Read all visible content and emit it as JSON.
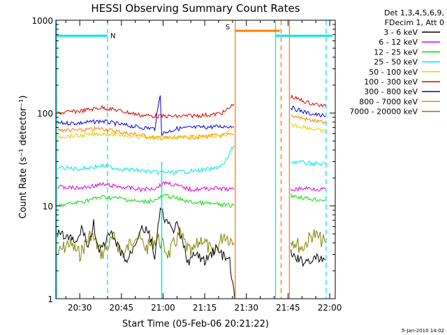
{
  "chart_data": {
    "type": "line",
    "title": "HESSI Observing Summary Count Rates",
    "xlabel": "Start Time (05-Feb-06 20:21:22)",
    "ylabel": "Count Rate (s⁻¹ detector⁻¹)",
    "x_range_minutes": [
      21.4,
      122
    ],
    "y_range": [
      1,
      1000
    ],
    "y_scale": "log",
    "x_ticks": [
      {
        "min": 30,
        "label": "20:30"
      },
      {
        "min": 45,
        "label": "20:45"
      },
      {
        "min": 60,
        "label": "21:00"
      },
      {
        "min": 75,
        "label": "21:15"
      },
      {
        "min": 90,
        "label": "21:30"
      },
      {
        "min": 105,
        "label": "21:45"
      },
      {
        "min": 120,
        "label": "22:00"
      }
    ],
    "y_ticks": [
      {
        "value": 1,
        "label": "1"
      },
      {
        "value": 10,
        "label": "10"
      },
      {
        "value": 100,
        "label": "100"
      },
      {
        "value": 1000,
        "label": "1000"
      }
    ],
    "legend": {
      "header": [
        "Det 1,3,4,5,6,9,",
        "FDecim 1, Att 0"
      ],
      "placement": "top-right"
    },
    "series": [
      {
        "name": "3 - 6 keV",
        "color": "#000000",
        "points": [
          [
            22,
            5
          ],
          [
            26,
            4.5
          ],
          [
            29,
            4
          ],
          [
            31,
            6
          ],
          [
            33,
            3.5
          ],
          [
            35,
            6.5
          ],
          [
            37,
            3
          ],
          [
            39,
            4
          ],
          [
            41,
            5
          ],
          [
            44,
            3.5
          ],
          [
            47,
            2.5
          ],
          [
            50,
            4
          ],
          [
            52,
            6
          ],
          [
            55,
            5
          ],
          [
            57,
            2.8
          ],
          [
            59,
            9
          ],
          [
            61,
            7
          ],
          [
            63,
            5.5
          ],
          [
            65,
            6
          ],
          [
            67,
            4
          ],
          [
            69,
            2.5
          ],
          [
            72,
            3
          ],
          [
            75,
            2.5
          ],
          [
            79,
            3.5
          ],
          [
            81,
            3
          ],
          [
            84,
            2.5
          ],
          [
            85.8,
            1
          ]
        ],
        "points2": [
          [
            106,
            3
          ],
          [
            110,
            2.5
          ],
          [
            115,
            2.7
          ],
          [
            118.5,
            2.6
          ]
        ]
      },
      {
        "name": "6 - 12 keV",
        "color": "#e000e0",
        "points": [
          [
            22,
            16
          ],
          [
            30,
            15.5
          ],
          [
            38,
            17
          ],
          [
            45,
            16
          ],
          [
            52,
            15
          ],
          [
            57,
            15.5
          ],
          [
            61,
            18
          ],
          [
            65,
            16.5
          ],
          [
            70,
            15
          ],
          [
            78,
            15.5
          ],
          [
            85.5,
            15
          ]
        ],
        "points2": [
          [
            106,
            15
          ],
          [
            112,
            15.5
          ],
          [
            118.5,
            15
          ]
        ]
      },
      {
        "name": "12 - 25 keV",
        "color": "#00e000",
        "points": [
          [
            22,
            10
          ],
          [
            30,
            11
          ],
          [
            38,
            12.5
          ],
          [
            45,
            12
          ],
          [
            52,
            11
          ],
          [
            57,
            11.5
          ],
          [
            61,
            13
          ],
          [
            65,
            12
          ],
          [
            70,
            11
          ],
          [
            78,
            10.5
          ],
          [
            85.5,
            10
          ]
        ],
        "points2": [
          [
            106,
            13
          ],
          [
            112,
            12
          ],
          [
            118.5,
            11.5
          ]
        ]
      },
      {
        "name": "25 - 50 keV",
        "color": "#00e8e8",
        "points": [
          [
            22,
            26
          ],
          [
            30,
            25
          ],
          [
            38,
            27
          ],
          [
            45,
            25
          ],
          [
            52,
            24
          ],
          [
            57,
            23
          ],
          [
            65,
            23
          ],
          [
            72,
            24
          ],
          [
            78,
            25
          ],
          [
            82,
            28
          ],
          [
            85.5,
            45
          ]
        ],
        "points2": [
          [
            106,
            30
          ],
          [
            112,
            29
          ],
          [
            118.5,
            28
          ]
        ]
      },
      {
        "name": "50 - 100 keV",
        "color": "#e8d000",
        "points": [
          [
            22,
            56
          ],
          [
            30,
            57
          ],
          [
            38,
            60
          ],
          [
            45,
            58
          ],
          [
            52,
            55
          ],
          [
            57,
            54
          ],
          [
            65,
            55
          ],
          [
            72,
            56
          ],
          [
            78,
            56
          ],
          [
            82,
            56
          ],
          [
            85.5,
            70
          ]
        ],
        "points2": [
          [
            106,
            75
          ],
          [
            112,
            70
          ],
          [
            118.5,
            62
          ]
        ]
      },
      {
        "name": "100 - 300 keV",
        "color": "#e00000",
        "points": [
          [
            22,
            100
          ],
          [
            30,
            105
          ],
          [
            38,
            115
          ],
          [
            45,
            105
          ],
          [
            52,
            95
          ],
          [
            57,
            93
          ],
          [
            65,
            92
          ],
          [
            72,
            94
          ],
          [
            78,
            96
          ],
          [
            82,
            102
          ],
          [
            85.5,
            125
          ]
        ],
        "points2": [
          [
            106,
            150
          ],
          [
            112,
            130
          ],
          [
            118.5,
            118
          ]
        ]
      },
      {
        "name": "300 - 800 keV",
        "color": "#0000e0",
        "points": [
          [
            22,
            78
          ],
          [
            30,
            78
          ],
          [
            38,
            82
          ],
          [
            45,
            75
          ],
          [
            52,
            70
          ],
          [
            57,
            68
          ],
          [
            59,
            160
          ],
          [
            59.5,
            60
          ],
          [
            65,
            68
          ],
          [
            72,
            70
          ],
          [
            78,
            71
          ],
          [
            82,
            72
          ],
          [
            85.5,
            72
          ]
        ],
        "points2": [
          [
            106,
            115
          ],
          [
            112,
            100
          ],
          [
            118.5,
            92
          ]
        ]
      },
      {
        "name": "800 - 7000 keV",
        "color": "#ff8000",
        "points": [
          [
            22,
            66
          ],
          [
            30,
            65
          ],
          [
            38,
            68
          ],
          [
            45,
            62
          ],
          [
            52,
            58
          ],
          [
            57,
            54
          ],
          [
            65,
            54
          ],
          [
            72,
            55
          ],
          [
            78,
            57
          ],
          [
            82,
            58
          ],
          [
            85.5,
            58
          ]
        ],
        "points2": [
          [
            106,
            95
          ],
          [
            112,
            85
          ],
          [
            118.5,
            78
          ]
        ]
      },
      {
        "name": "7000 - 20000 keV",
        "color": "#808000",
        "points": [
          [
            22,
            3
          ],
          [
            26,
            4
          ],
          [
            30,
            3
          ],
          [
            34,
            5
          ],
          [
            38,
            3
          ],
          [
            42,
            4.5
          ],
          [
            46,
            3
          ],
          [
            50,
            5
          ],
          [
            54,
            3.5
          ],
          [
            58,
            4.5
          ],
          [
            62,
            3
          ],
          [
            66,
            5
          ],
          [
            70,
            3
          ],
          [
            74,
            4.5
          ],
          [
            78,
            3
          ],
          [
            82,
            5
          ],
          [
            85.5,
            4
          ]
        ],
        "points2": [
          [
            106,
            4.5
          ],
          [
            110,
            3.5
          ],
          [
            114,
            5
          ],
          [
            118.5,
            4
          ]
        ]
      }
    ],
    "flag_bars": [
      {
        "label": "N",
        "color": "#00e8e8",
        "x_start": 21.4,
        "x_end": 40,
        "y": 680
      },
      {
        "label": "S",
        "color": "#ff8000",
        "x_start": 86,
        "x_end": 102,
        "y": 770
      },
      {
        "label": "",
        "color": "#00e8e8",
        "x_start": 100.5,
        "x_end": 121,
        "y": 680
      }
    ],
    "vlines": [
      {
        "x": 21.6,
        "color": "#00e8e8",
        "style": "solid"
      },
      {
        "x": 40,
        "color": "#00e8e8",
        "style": "dashed"
      },
      {
        "x": 86,
        "color": "#ff8000",
        "style": "solid"
      },
      {
        "x": 100.5,
        "color": "#00e8e8",
        "style": "solid"
      },
      {
        "x": 102.5,
        "color": "#ff8000",
        "style": "dashed"
      },
      {
        "x": 105.5,
        "color": "#ff8000",
        "style": "solid"
      },
      {
        "x": 118.7,
        "color": "#00e8e8",
        "style": "dashed"
      }
    ],
    "cyan_spike_x": 59.5
  },
  "timestamp": "5-Jan-2010 14:02"
}
